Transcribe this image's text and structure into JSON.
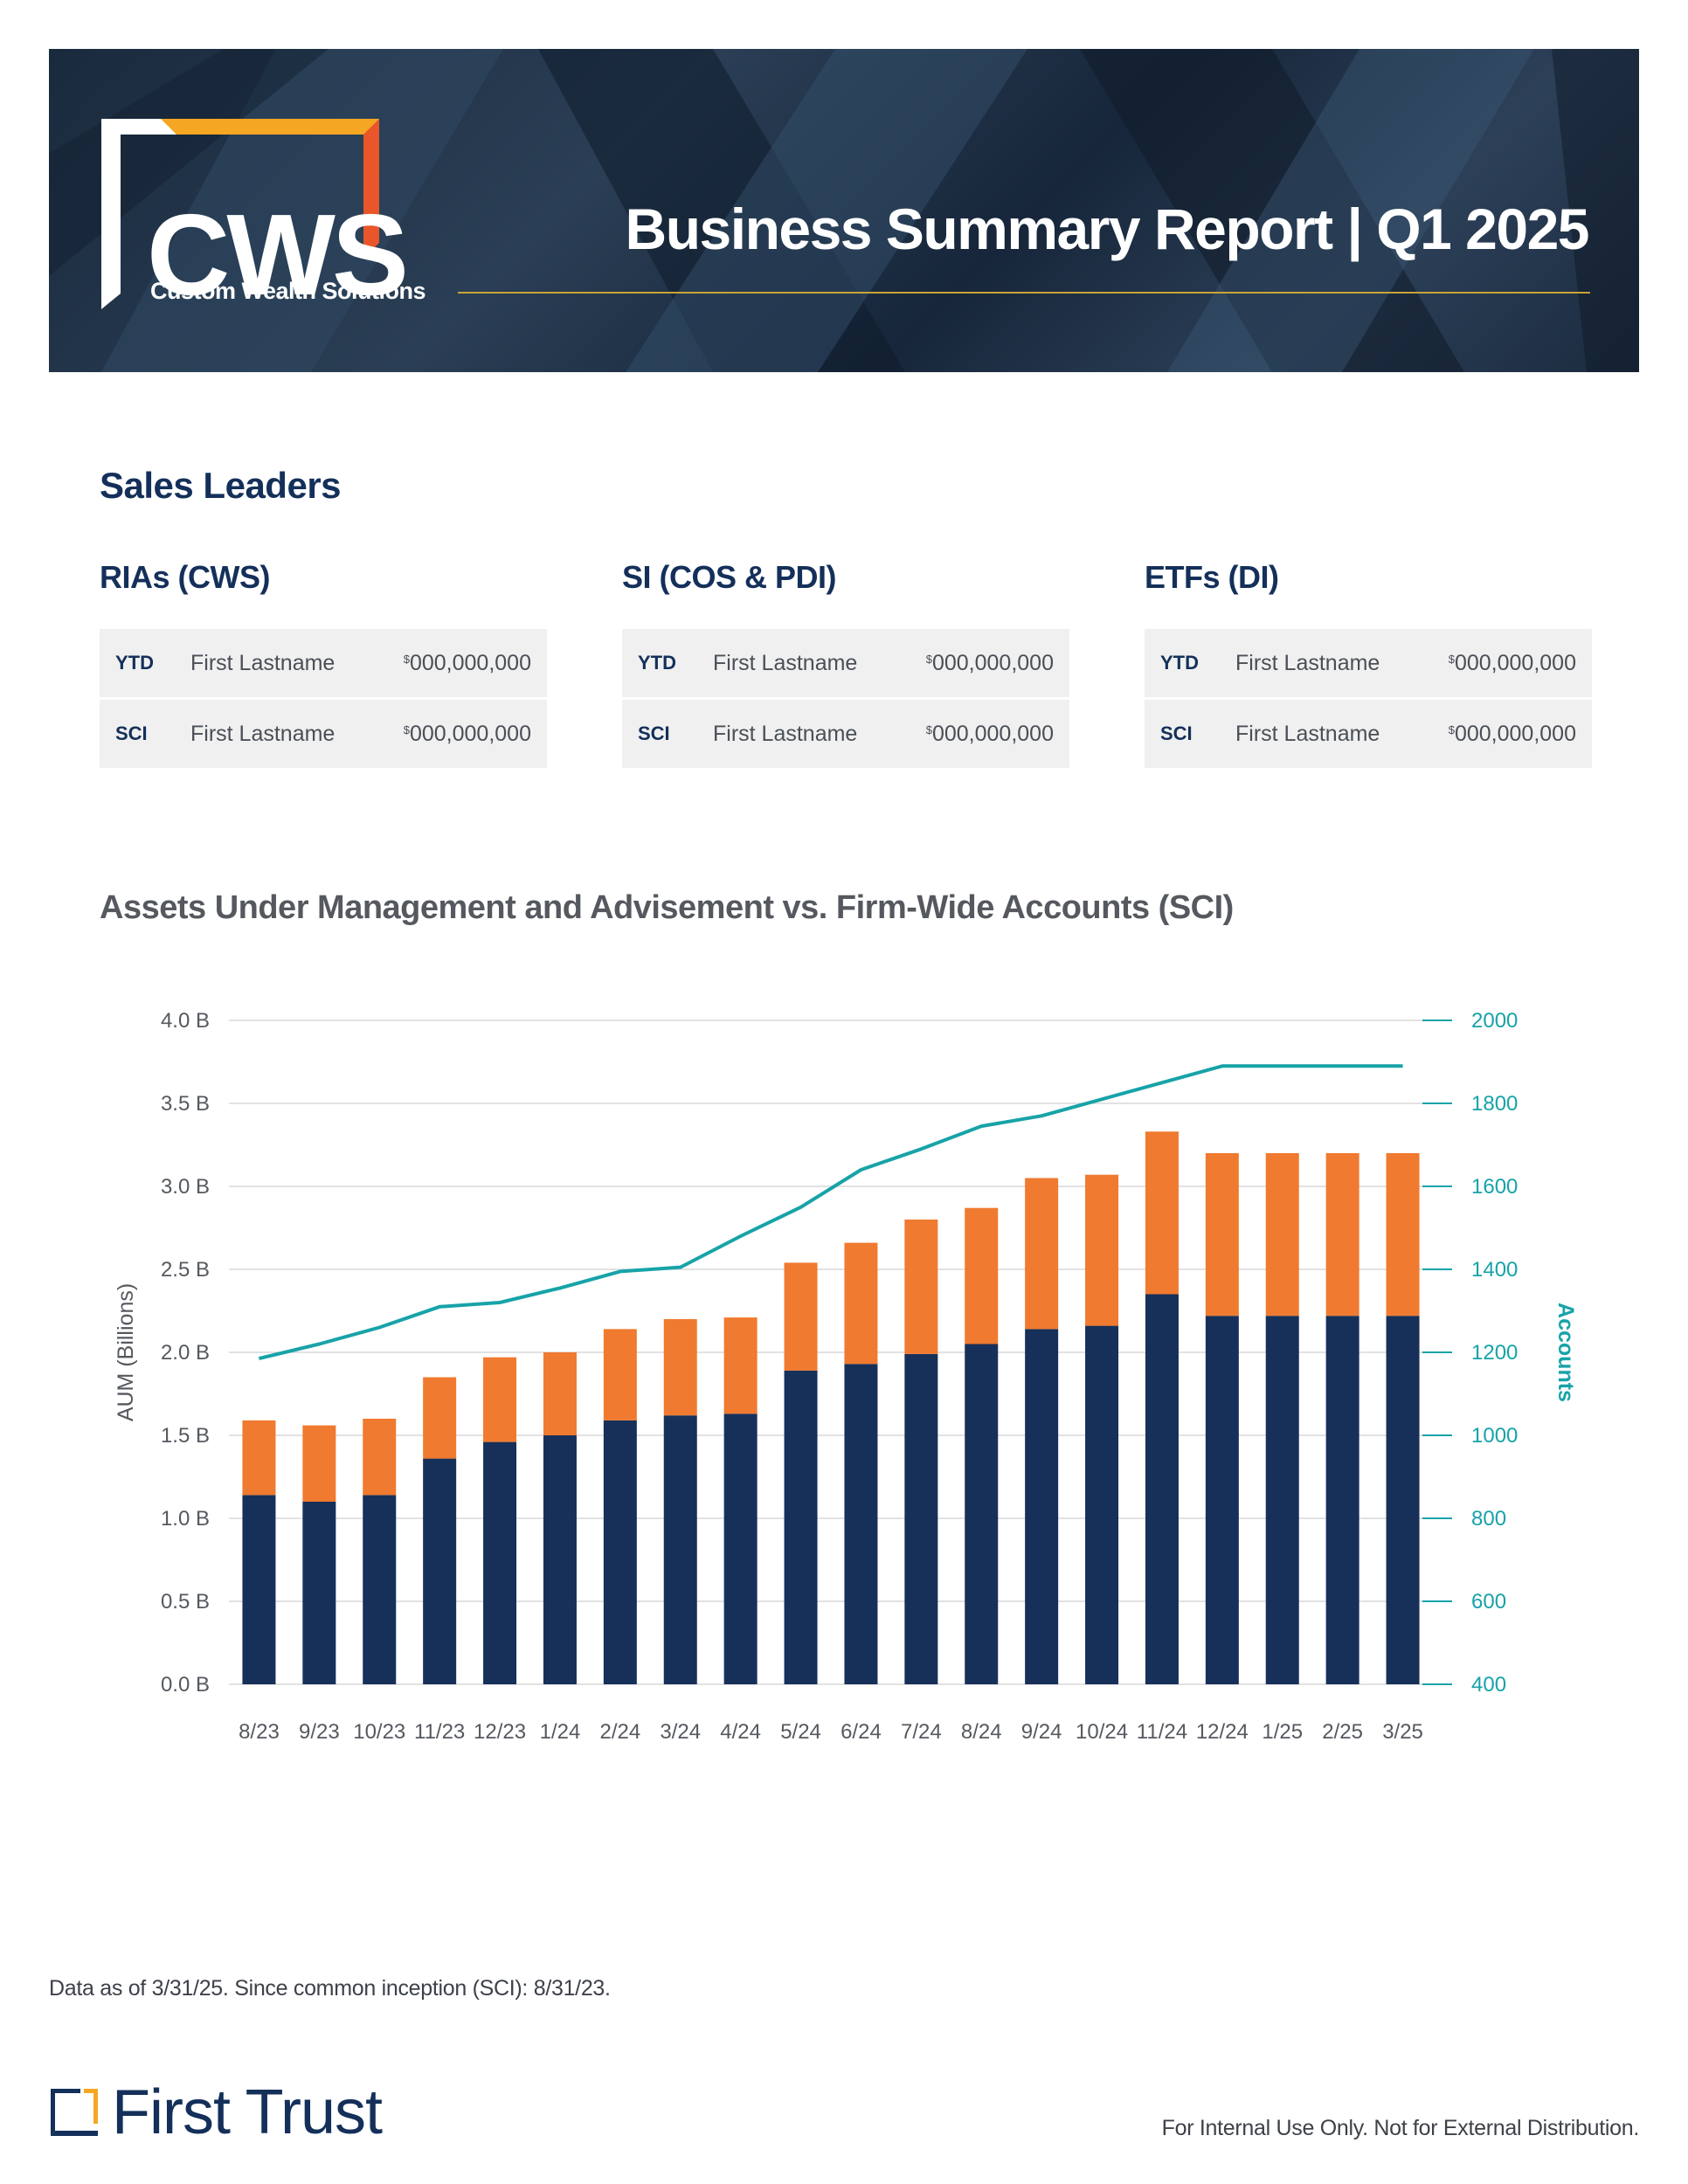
{
  "header": {
    "logo_letters": "CWS",
    "logo_tagline": "Custom Wealth Solutions",
    "report_title": "Business Summary Report | Q1 2025"
  },
  "sales_leaders": {
    "title": "Sales Leaders",
    "columns": [
      {
        "heading": "RIAs (CWS)",
        "rows": [
          {
            "key": "YTD",
            "name": "First Lastname",
            "currency": "$",
            "amount": "000,000,000"
          },
          {
            "key": "SCI",
            "name": "First Lastname",
            "currency": "$",
            "amount": "000,000,000"
          }
        ]
      },
      {
        "heading": "SI (COS & PDI)",
        "rows": [
          {
            "key": "YTD",
            "name": "First Lastname",
            "currency": "$",
            "amount": "000,000,000"
          },
          {
            "key": "SCI",
            "name": "First Lastname",
            "currency": "$",
            "amount": "000,000,000"
          }
        ]
      },
      {
        "heading": "ETFs (DI)",
        "rows": [
          {
            "key": "YTD",
            "name": "First Lastname",
            "currency": "$",
            "amount": "000,000,000"
          },
          {
            "key": "SCI",
            "name": "First Lastname",
            "currency": "$",
            "amount": "000,000,000"
          }
        ]
      }
    ]
  },
  "chart_data": {
    "type": "bar",
    "title": "Assets Under Management and Advisement vs. Firm-Wide Accounts (SCI)",
    "categories": [
      "8/23",
      "9/23",
      "10/23",
      "11/23",
      "12/23",
      "1/24",
      "2/24",
      "3/24",
      "4/24",
      "5/24",
      "6/24",
      "7/24",
      "8/24",
      "9/24",
      "10/24",
      "11/24",
      "12/24",
      "1/25",
      "2/25",
      "3/25"
    ],
    "series": [
      {
        "name": "AUM",
        "color": "#17305a",
        "stack": "aum",
        "values": [
          1.14,
          1.1,
          1.14,
          1.36,
          1.46,
          1.5,
          1.59,
          1.62,
          1.63,
          1.89,
          1.93,
          1.99,
          2.05,
          2.14,
          2.16,
          2.35,
          2.22,
          2.22,
          2.22,
          2.22
        ]
      },
      {
        "name": "AUA",
        "color": "#f07a2f",
        "stack": "aum",
        "values": [
          0.45,
          0.46,
          0.46,
          0.49,
          0.51,
          0.5,
          0.55,
          0.58,
          0.58,
          0.65,
          0.73,
          0.81,
          0.82,
          0.91,
          0.91,
          0.98,
          0.98,
          0.98,
          0.98,
          0.98
        ]
      },
      {
        "name": "Accounts",
        "color": "#17a3a8",
        "type": "line",
        "axis": "right",
        "values": [
          1185,
          1220,
          1260,
          1310,
          1320,
          1355,
          1395,
          1405,
          1480,
          1550,
          1640,
          1690,
          1745,
          1770,
          1810,
          1850,
          1890,
          1890,
          1890,
          1890
        ]
      }
    ],
    "ylabel": "AUM (Billions)",
    "ylim": [
      0,
      4.0
    ],
    "yticks": [
      "0.0 B",
      "0.5 B",
      "1.0 B",
      "1.5 B",
      "2.0 B",
      "2.5 B",
      "3.0 B",
      "3.5 B",
      "4.0 B"
    ],
    "y2label": "Accounts",
    "y2lim": [
      400,
      2000
    ],
    "y2ticks": [
      "400",
      "600",
      "800",
      "1000",
      "1200",
      "1400",
      "1600",
      "1800",
      "2000"
    ],
    "grid": true
  },
  "footer": {
    "note": "Data as of 3/31/25. Since common inception (SCI): 8/31/23.",
    "brand": "First Trust",
    "disclaimer": "For Internal Use Only. Not for External Distribution."
  }
}
